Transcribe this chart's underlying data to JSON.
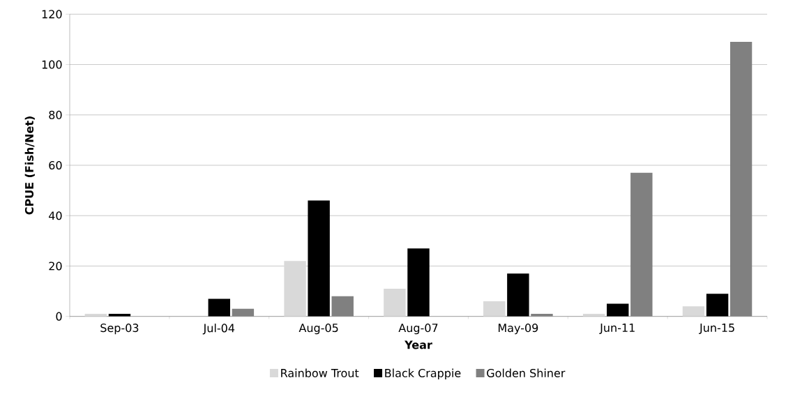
{
  "chart_data": {
    "type": "bar",
    "xlabel": "Year",
    "ylabel": "CPUE (Fish/Net)",
    "categories": [
      "Sep-03",
      "Jul-04",
      "Aug-05",
      "Aug-07",
      "May-09",
      "Jun-11",
      "Jun-15"
    ],
    "series": [
      {
        "name": "Rainbow Trout",
        "color": "#d9d9d9",
        "values": [
          1,
          0,
          22,
          11,
          6,
          1,
          4
        ]
      },
      {
        "name": "Black Crappie",
        "color": "#000000",
        "values": [
          1,
          7,
          46,
          27,
          17,
          5,
          9
        ]
      },
      {
        "name": "Golden Shiner",
        "color": "#808080",
        "values": [
          0,
          3,
          8,
          0,
          1,
          57,
          109
        ]
      }
    ],
    "ylim": [
      0,
      120
    ],
    "yticks": [
      0,
      20,
      40,
      60,
      80,
      100,
      120
    ],
    "grid": "y",
    "legend": "bottom"
  }
}
